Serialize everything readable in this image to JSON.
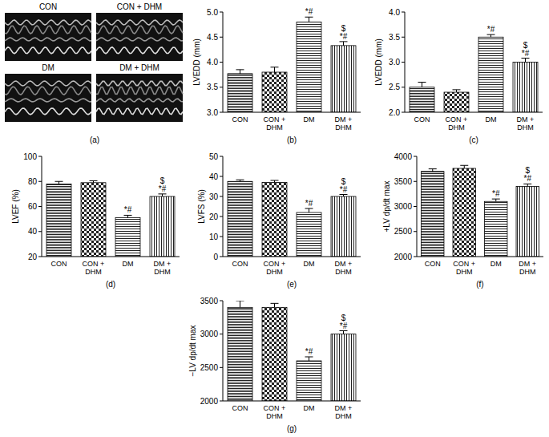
{
  "image_panel": {
    "title": "(a)",
    "captions": [
      "CON",
      "CON + DHM",
      "DM",
      "DM + DHM"
    ]
  },
  "chart_data": [
    {
      "type": "bar",
      "title": "(b)",
      "y_label": "LVEDD (mm)",
      "color": "#000000",
      "categories": [
        "CON",
        "CON + DHM",
        "DM",
        "DM + DHM"
      ],
      "values": [
        3.77,
        3.8,
        4.8,
        4.33
      ],
      "errors": [
        0.08,
        0.1,
        0.1,
        0.08
      ],
      "annotations": [
        null,
        null,
        [
          "*#"
        ],
        [
          "$",
          "*#"
        ]
      ],
      "ylim": [
        3.0,
        5.0
      ],
      "yticks": [
        {
          "value": 3,
          "label": "3.0"
        },
        {
          "value": 3.5,
          "label": "3.5"
        },
        {
          "value": 4,
          "label": "4.0"
        },
        {
          "value": 4.5,
          "label": "4.5"
        },
        {
          "value": 5,
          "label": "5.0"
        }
      ]
    },
    {
      "type": "bar",
      "title": "(c)",
      "y_label": "LVEDD (mm)",
      "color": "#000000",
      "categories": [
        "CON",
        "CON + DHM",
        "DM",
        "DM + DHM"
      ],
      "values": [
        2.5,
        2.4,
        3.5,
        3.0
      ],
      "errors": [
        0.1,
        0.05,
        0.05,
        0.08
      ],
      "annotations": [
        null,
        null,
        [
          "*#"
        ],
        [
          "$",
          "*#"
        ]
      ],
      "ylim": [
        2.0,
        4.0
      ],
      "yticks": [
        {
          "value": 2,
          "label": "2.0"
        },
        {
          "value": 2.5,
          "label": "2.5"
        },
        {
          "value": 3,
          "label": "3.0"
        },
        {
          "value": 3.5,
          "label": "3.5"
        },
        {
          "value": 4,
          "label": "4.0"
        }
      ]
    },
    {
      "type": "bar",
      "title": "(d)",
      "y_label": "LVEF (%)",
      "color": "#000000",
      "categories": [
        "CON",
        "CON + DHM",
        "DM",
        "DM + DHM"
      ],
      "values": [
        78,
        79,
        51,
        68
      ],
      "errors": [
        2,
        1.5,
        2,
        2
      ],
      "annotations": [
        null,
        null,
        [
          "*#"
        ],
        [
          "$",
          "*#"
        ]
      ],
      "ylim": [
        20,
        100
      ],
      "yticks": [
        20,
        40,
        60,
        80,
        100
      ]
    },
    {
      "type": "bar",
      "title": "(e)",
      "y_label": "LVFS (%)",
      "color": "#000000",
      "categories": [
        "CON",
        "CON + DHM",
        "DM",
        "DM + DHM"
      ],
      "values": [
        37.5,
        37,
        22,
        30
      ],
      "errors": [
        0.8,
        1,
        2,
        1
      ],
      "annotations": [
        null,
        null,
        [
          "*#"
        ],
        [
          "$",
          "*#"
        ]
      ],
      "ylim": [
        0,
        50
      ],
      "yticks": [
        0,
        10,
        20,
        30,
        40,
        50
      ]
    },
    {
      "type": "bar",
      "title": "(f)",
      "y_label": "+LV dp/dt max",
      "color": "#000000",
      "categories": [
        "CON",
        "CON + DHM",
        "DM",
        "DM + DHM"
      ],
      "values": [
        3700,
        3760,
        3100,
        3400
      ],
      "errors": [
        50,
        60,
        50,
        50
      ],
      "annotations": [
        null,
        null,
        [
          "*#"
        ],
        [
          "$",
          "*#"
        ]
      ],
      "ylim": [
        2000,
        4000
      ],
      "yticks": [
        2000,
        2500,
        3000,
        3500,
        4000
      ]
    },
    {
      "type": "bar",
      "title": "(g)",
      "y_label": "−LV dp/dt max",
      "color": "#000000",
      "categories": [
        "CON",
        "CON + DHM",
        "DM",
        "DM + DHM"
      ],
      "values": [
        3400,
        3400,
        2600,
        3000
      ],
      "errors": [
        100,
        60,
        60,
        50
      ],
      "annotations": [
        null,
        null,
        [
          "*#"
        ],
        [
          "$",
          "*#"
        ]
      ],
      "ylim": [
        2000,
        3500
      ],
      "yticks": [
        2000,
        2500,
        3000,
        3500
      ]
    }
  ]
}
